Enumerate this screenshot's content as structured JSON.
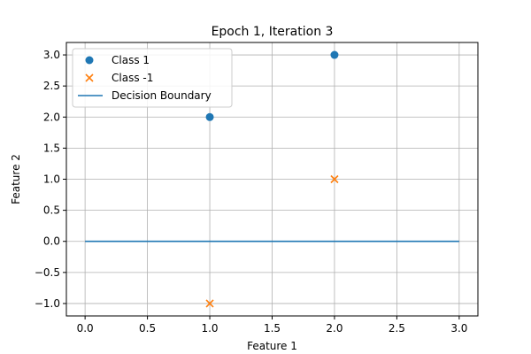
{
  "chart_data": {
    "type": "scatter",
    "title": "Epoch 1, Iteration 3",
    "xlabel": "Feature 1",
    "ylabel": "Feature 2",
    "xlim": [
      -0.15,
      3.15
    ],
    "ylim": [
      -1.2,
      3.2
    ],
    "xticks": [
      0.0,
      0.5,
      1.0,
      1.5,
      2.0,
      2.5,
      3.0
    ],
    "xtick_labels": [
      "0.0",
      "0.5",
      "1.0",
      "1.5",
      "2.0",
      "2.5",
      "3.0"
    ],
    "yticks": [
      -1.0,
      -0.5,
      0.0,
      0.5,
      1.0,
      1.5,
      2.0,
      2.5,
      3.0
    ],
    "ytick_labels": [
      "−1.0",
      "−0.5",
      "0.0",
      "0.5",
      "1.0",
      "1.5",
      "2.0",
      "2.5",
      "3.0"
    ],
    "grid": true,
    "legend_position": "top-left",
    "series": [
      {
        "name": "Class 1",
        "marker": "circle",
        "color": "#1f77b4",
        "points": [
          [
            1,
            2
          ],
          [
            2,
            3
          ]
        ]
      },
      {
        "name": "Class -1",
        "marker": "x",
        "color": "#ff7f0e",
        "points": [
          [
            2,
            1
          ],
          [
            1,
            -1
          ]
        ]
      }
    ],
    "lines": [
      {
        "name": "Decision Boundary",
        "color": "#1f77b4",
        "points": [
          [
            0,
            0
          ],
          [
            3,
            0
          ]
        ]
      }
    ]
  }
}
